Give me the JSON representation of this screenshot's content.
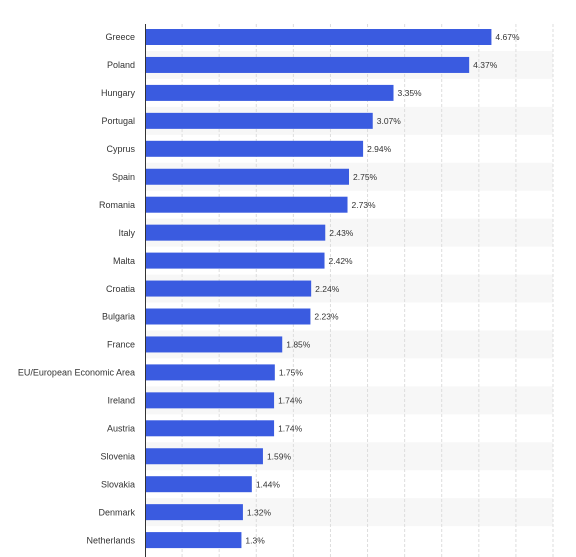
{
  "chart_data": {
    "type": "bar",
    "orientation": "horizontal",
    "categories": [
      "Greece",
      "Poland",
      "Hungary",
      "Portugal",
      "Cyprus",
      "Spain",
      "Romania",
      "Italy",
      "Malta",
      "Croatia",
      "Bulgaria",
      "France",
      "EU/European Economic Area",
      "Ireland",
      "Austria",
      "Slovenia",
      "Slovakia",
      "Denmark",
      "Netherlands"
    ],
    "values": [
      4.67,
      4.37,
      3.35,
      3.07,
      2.94,
      2.75,
      2.73,
      2.43,
      2.42,
      2.24,
      2.23,
      1.85,
      1.75,
      1.74,
      1.74,
      1.59,
      1.44,
      1.32,
      1.3
    ],
    "value_labels": [
      "4.67%",
      "4.37%",
      "3.35%",
      "3.07%",
      "2.94%",
      "2.75%",
      "2.73%",
      "2.43%",
      "2.42%",
      "2.24%",
      "2.23%",
      "1.85%",
      "1.75%",
      "1.74%",
      "1.74%",
      "1.59%",
      "1.44%",
      "1.32%",
      "1.3%"
    ],
    "xlim": [
      0,
      5.5
    ],
    "grid": true,
    "bar_color": "#3a5be0",
    "stripe_color": "#f7f7f7",
    "grid_color": "#dddddd",
    "axis_color": "#333333"
  }
}
